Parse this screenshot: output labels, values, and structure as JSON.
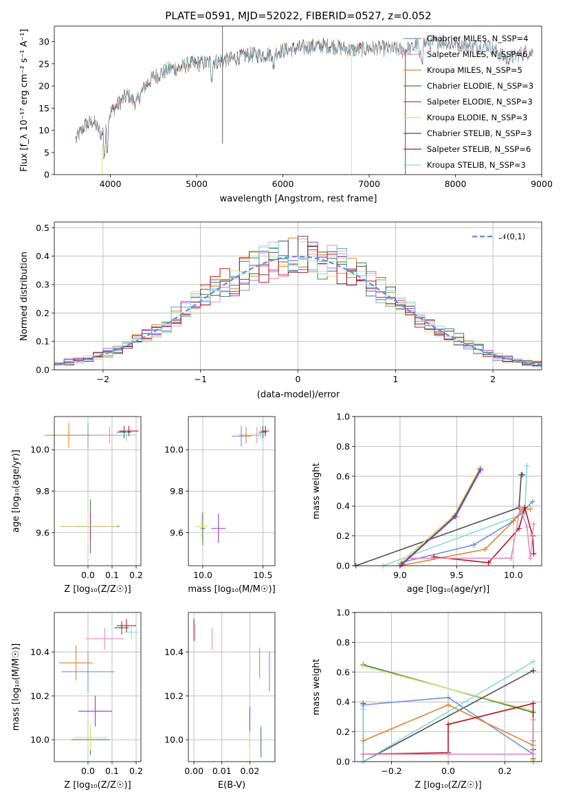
{
  "colors": {
    "chabrier_miles": "#6a8fdc",
    "salpeter_miles": "#e98bbf",
    "kroupa_miles": "#e2832a",
    "chabrier_elodie": "#3f7d54",
    "salpeter_elodie": "#9a32c6",
    "kroupa_elodie": "#d4e56b",
    "chabrier_stelib": "#4d4d4d",
    "salpeter_stelib": "#b0141b",
    "kroupa_stelib": "#82d9e2",
    "normal": "#6a8fdc"
  },
  "chart_data": [
    {
      "id": "spectrum",
      "type": "line",
      "title": "PLATE=0591, MJD=52022, FIBERID=0527, z=0.052",
      "xlabel": "wavelength [Angstrom, rest frame]",
      "ylabel": "Flux [f_λ 10⁻¹⁷ erg cm⁻² s⁻¹ A⁻¹]",
      "xlim": [
        3350,
        9000
      ],
      "ylim": [
        0,
        33.5
      ],
      "xticks": [
        "4000",
        "5000",
        "6000",
        "7000",
        "8000",
        "9000"
      ],
      "yticks": [
        "0",
        "5",
        "10",
        "15",
        "20",
        "25",
        "30"
      ],
      "continuum_anchors": {
        "x": [
          3600,
          3700,
          3800,
          3900,
          4000,
          4100,
          4200,
          4300,
          4400,
          4500,
          4600,
          4700,
          4800,
          4900,
          5000,
          5200,
          5400,
          5600,
          5800,
          6000,
          6200,
          6400,
          6600,
          6800,
          7000,
          7200,
          7400,
          7600,
          7800,
          8000,
          8200,
          8400,
          8600,
          8800
        ],
        "y": [
          8,
          11,
          12,
          9,
          14,
          16,
          18,
          16,
          20,
          22,
          23,
          24,
          24,
          25,
          25,
          25.5,
          26,
          27,
          27,
          28,
          28.5,
          29,
          29,
          28,
          28.5,
          28.5,
          28,
          29.5,
          30,
          29.5,
          29,
          29,
          26,
          27.5
        ]
      },
      "legend": [
        {
          "label": "Chabrier MILES, N_SSP=4",
          "color_key": "chabrier_miles"
        },
        {
          "label": "Salpeter MILES, N_SSP=6",
          "color_key": "salpeter_miles"
        },
        {
          "label": "Kroupa MILES, N_SSP=5",
          "color_key": "kroupa_miles"
        },
        {
          "label": "Chabrier ELODIE, N_SSP=3",
          "color_key": "chabrier_elodie"
        },
        {
          "label": "Salpeter ELODIE, N_SSP=3",
          "color_key": "salpeter_elodie"
        },
        {
          "label": "Kroupa ELODIE, N_SSP=3",
          "color_key": "kroupa_elodie"
        },
        {
          "label": "Chabrier STELIB, N_SSP=3",
          "color_key": "chabrier_stelib"
        },
        {
          "label": "Salpeter STELIB, N_SSP=6",
          "color_key": "salpeter_stelib"
        },
        {
          "label": "Kroupa STELIB, N_SSP=3",
          "color_key": "kroupa_stelib"
        }
      ]
    },
    {
      "id": "residuals",
      "type": "histogram",
      "xlabel": "(data-model)/error",
      "ylabel": "Normed distribution",
      "xlim": [
        -2.5,
        2.5
      ],
      "ylim": [
        0,
        0.52
      ],
      "xticks": [
        "-2",
        "-1",
        "0",
        "1",
        "2"
      ],
      "yticks": [
        "0.0",
        "0.1",
        "0.2",
        "0.3",
        "0.4",
        "0.5"
      ],
      "bin_width": 0.1,
      "legend_label": "𝒩(0,1)"
    },
    {
      "id": "age_vs_Z",
      "type": "errorbar",
      "xlabel": "Z [log₁₀(Z/Z☉)]",
      "ylabel": "age  [log₁₀(age/yr)]",
      "xlim": [
        -0.14,
        0.22
      ],
      "ylim": [
        9.44,
        10.16
      ],
      "xticks": [
        "0.0",
        "0.1",
        "0.2"
      ],
      "yticks": [
        "9.6",
        "9.8",
        "10.0"
      ],
      "points": [
        {
          "x": 0.0,
          "y": 10.07,
          "xerr": 0.18,
          "yerr": 0.06,
          "color_key": "chabrier_miles"
        },
        {
          "x": 0.09,
          "y": 10.07,
          "xerr": 0.04,
          "yerr": 0.04,
          "color_key": "salpeter_miles"
        },
        {
          "x": -0.08,
          "y": 10.07,
          "xerr": 0.09,
          "yerr": 0.06,
          "color_key": "kroupa_miles"
        },
        {
          "x": 0.15,
          "y": 10.085,
          "xerr": 0.03,
          "yerr": 0.03,
          "color_key": "chabrier_stelib"
        },
        {
          "x": 0.17,
          "y": 10.09,
          "xerr": 0.04,
          "yerr": 0.025,
          "color_key": "salpeter_stelib"
        },
        {
          "x": 0.16,
          "y": 10.07,
          "xerr": 0.04,
          "yerr": 0.03,
          "color_key": "kroupa_stelib"
        },
        {
          "x": 0.01,
          "y": 9.63,
          "xerr": 0.06,
          "yerr": 0.13,
          "color_key": "chabrier_elodie"
        },
        {
          "x": 0.01,
          "y": 9.63,
          "xerr": 0.12,
          "yerr": 0.07,
          "color_key": "salpeter_elodie"
        },
        {
          "x": 0.0,
          "y": 9.63,
          "xerr": 0.12,
          "yerr": 0.08,
          "color_key": "kroupa_elodie"
        }
      ]
    },
    {
      "id": "age_vs_mass",
      "type": "errorbar",
      "xlabel": "mass [log₁₀(M/M☉)]",
      "ylabel": "",
      "xlim": [
        9.88,
        10.6
      ],
      "ylim": [
        9.44,
        10.16
      ],
      "xticks": [
        "10.0",
        "10.5"
      ],
      "yticks": [
        "9.6",
        "9.8",
        "10.0"
      ],
      "points": [
        {
          "x": 10.32,
          "y": 10.065,
          "xerr": 0.08,
          "yerr": 0.05,
          "color_key": "chabrier_miles"
        },
        {
          "x": 10.45,
          "y": 10.07,
          "xerr": 0.04,
          "yerr": 0.04,
          "color_key": "salpeter_miles"
        },
        {
          "x": 10.36,
          "y": 10.07,
          "xerr": 0.06,
          "yerr": 0.04,
          "color_key": "kroupa_miles"
        },
        {
          "x": 10.5,
          "y": 10.085,
          "xerr": 0.03,
          "yerr": 0.03,
          "color_key": "chabrier_stelib"
        },
        {
          "x": 10.52,
          "y": 10.09,
          "xerr": 0.03,
          "yerr": 0.025,
          "color_key": "salpeter_stelib"
        },
        {
          "x": 10.48,
          "y": 10.08,
          "xerr": 0.03,
          "yerr": 0.03,
          "color_key": "kroupa_stelib"
        },
        {
          "x": 10.0,
          "y": 9.62,
          "xerr": 0.02,
          "yerr": 0.08,
          "color_key": "chabrier_elodie"
        },
        {
          "x": 10.13,
          "y": 9.62,
          "xerr": 0.06,
          "yerr": 0.07,
          "color_key": "salpeter_elodie"
        },
        {
          "x": 9.99,
          "y": 9.63,
          "xerr": 0.06,
          "yerr": 0.06,
          "color_key": "kroupa_elodie"
        }
      ]
    },
    {
      "id": "mass_weight_vs_age",
      "type": "line",
      "xlabel": "age  [log₁₀(age/yr)]",
      "ylabel": "mass weight",
      "xlim": [
        8.6,
        10.25
      ],
      "ylim": [
        0,
        1.0
      ],
      "xticks": [
        "9.0",
        "9.5",
        "10.0"
      ],
      "yticks": [
        "0.0",
        "0.2",
        "0.4",
        "0.6",
        "0.8",
        "1.0"
      ],
      "series": [
        {
          "color_key": "chabrier_stelib",
          "x": [
            8.61,
            10.05,
            10.07,
            10.08
          ],
          "y": [
            0.0,
            0.39,
            0.61,
            0.61
          ]
        },
        {
          "color_key": "kroupa_stelib",
          "x": [
            8.85,
            10.1,
            10.12
          ],
          "y": [
            0.0,
            0.35,
            0.67
          ]
        },
        {
          "color_key": "chabrier_miles",
          "x": [
            9.0,
            9.65,
            10.0,
            10.17
          ],
          "y": [
            0.02,
            0.14,
            0.3,
            0.43
          ]
        },
        {
          "color_key": "kroupa_miles",
          "x": [
            9.0,
            9.75,
            10.0,
            10.08,
            10.15
          ],
          "y": [
            0.0,
            0.11,
            0.3,
            0.38,
            0.38
          ]
        },
        {
          "color_key": "salpeter_stelib",
          "x": [
            9.3,
            9.78,
            10.05,
            10.1,
            10.17,
            10.18
          ],
          "y": [
            0.06,
            0.02,
            0.25,
            0.39,
            0.2,
            0.08
          ]
        },
        {
          "color_key": "salpeter_miles",
          "x": [
            9.1,
            9.98,
            10.06,
            10.12,
            10.15,
            10.18
          ],
          "y": [
            0.05,
            0.05,
            0.39,
            0.26,
            0.05,
            0.28
          ]
        },
        {
          "color_key": "kroupa_elodie",
          "x": [
            9.0,
            9.48,
            9.7
          ],
          "y": [
            0.02,
            0.34,
            0.65
          ]
        },
        {
          "color_key": "chabrier_elodie",
          "x": [
            9.01,
            9.48,
            9.71
          ],
          "y": [
            0.01,
            0.33,
            0.65
          ]
        },
        {
          "color_key": "salpeter_elodie",
          "x": [
            9.02,
            9.49,
            9.71
          ],
          "y": [
            0.01,
            0.33,
            0.64
          ]
        }
      ]
    },
    {
      "id": "mass_vs_Z",
      "type": "errorbar",
      "xlabel": "Z [log₁₀(Z/Z☉)]",
      "ylabel": "mass [log₁₀(M/M☉)]",
      "xlim": [
        -0.14,
        0.22
      ],
      "ylim": [
        9.9,
        10.58
      ],
      "xticks": [
        "0.0",
        "0.1",
        "0.2"
      ],
      "yticks": [
        "10.0",
        "10.2",
        "10.4"
      ],
      "points": [
        {
          "x": 0.0,
          "y": 10.31,
          "xerr": 0.11,
          "yerr": 0.09,
          "color_key": "chabrier_miles"
        },
        {
          "x": 0.07,
          "y": 10.46,
          "xerr": 0.08,
          "yerr": 0.05,
          "color_key": "salpeter_miles"
        },
        {
          "x": -0.05,
          "y": 10.35,
          "xerr": 0.07,
          "yerr": 0.08,
          "color_key": "kroupa_miles"
        },
        {
          "x": 0.14,
          "y": 10.51,
          "xerr": 0.03,
          "yerr": 0.03,
          "color_key": "chabrier_stelib"
        },
        {
          "x": 0.16,
          "y": 10.52,
          "xerr": 0.04,
          "yerr": 0.03,
          "color_key": "salpeter_stelib"
        },
        {
          "x": 0.18,
          "y": 10.49,
          "xerr": 0.03,
          "yerr": 0.03,
          "color_key": "kroupa_stelib"
        },
        {
          "x": 0.01,
          "y": 10.0,
          "xerr": 0.08,
          "yerr": 0.07,
          "color_key": "chabrier_elodie"
        },
        {
          "x": 0.03,
          "y": 10.13,
          "xerr": 0.07,
          "yerr": 0.07,
          "color_key": "salpeter_elodie"
        },
        {
          "x": 0.01,
          "y": 10.01,
          "xerr": 0.07,
          "yerr": 0.06,
          "color_key": "kroupa_elodie"
        }
      ]
    },
    {
      "id": "mass_vs_ebv",
      "type": "errorbar",
      "xlabel": "E(B-V)",
      "ylabel": "",
      "xlim": [
        -0.002,
        0.029
      ],
      "ylim": [
        9.9,
        10.58
      ],
      "xticks": [
        "0.00",
        "0.01",
        "0.02"
      ],
      "yticks": [
        "10.0",
        "10.2",
        "10.4"
      ],
      "points": [
        {
          "x": 0.0,
          "y": 10.5,
          "xerr": 0.0,
          "yerr": 0.05,
          "color_key": "salpeter_stelib"
        },
        {
          "x": 0.0005,
          "y": 10.49,
          "xerr": 0.0,
          "yerr": 0.04,
          "color_key": "kroupa_stelib"
        },
        {
          "x": 0.0065,
          "y": 10.46,
          "xerr": 0.0,
          "yerr": 0.05,
          "color_key": "salpeter_miles"
        },
        {
          "x": 0.0235,
          "y": 10.35,
          "xerr": 0.0,
          "yerr": 0.07,
          "color_key": "kroupa_miles"
        },
        {
          "x": 0.027,
          "y": 10.31,
          "xerr": 0.0,
          "yerr": 0.09,
          "color_key": "chabrier_miles"
        },
        {
          "x": 0.02,
          "y": 10.06,
          "xerr": 0.0,
          "yerr": 0.09,
          "color_key": "salpeter_elodie"
        },
        {
          "x": 0.02,
          "y": 9.97,
          "xerr": 0.0,
          "yerr": 0.07,
          "color_key": "kroupa_elodie"
        },
        {
          "x": 0.024,
          "y": 9.99,
          "xerr": 0.0,
          "yerr": 0.07,
          "color_key": "chabrier_elodie"
        }
      ]
    },
    {
      "id": "mass_weight_vs_Z",
      "type": "line",
      "xlabel": "Z [log₁₀(Z/Z☉)]",
      "ylabel": "mass weight",
      "xlim": [
        -0.33,
        0.33
      ],
      "ylim": [
        0,
        1.0
      ],
      "xticks": [
        "-0.2",
        "0.0",
        "0.2"
      ],
      "yticks": [
        "0.0",
        "0.2",
        "0.4",
        "0.6",
        "0.8",
        "1.0"
      ],
      "series": [
        {
          "color_key": "chabrier_elodie",
          "x": [
            -0.3,
            0.3,
            0.3
          ],
          "y": [
            0.65,
            0.33,
            0.02
          ]
        },
        {
          "color_key": "kroupa_elodie",
          "x": [
            -0.3,
            0.3,
            0.3
          ],
          "y": [
            0.64,
            0.34,
            0.01
          ]
        },
        {
          "color_key": "chabrier_stelib",
          "x": [
            -0.3,
            -0.3,
            0.3,
            0.3
          ],
          "y": [
            0.39,
            0.0,
            0.61,
            0.61
          ]
        },
        {
          "color_key": "kroupa_stelib",
          "x": [
            -0.3,
            -0.3,
            0.3
          ],
          "y": [
            0.35,
            0.0,
            0.67
          ]
        },
        {
          "color_key": "chabrier_miles",
          "x": [
            -0.3,
            0.0,
            0.3,
            0.3
          ],
          "y": [
            0.38,
            0.43,
            0.05,
            0.14
          ]
        },
        {
          "color_key": "kroupa_miles",
          "x": [
            -0.3,
            0.0,
            0.3,
            0.3
          ],
          "y": [
            0.14,
            0.38,
            0.11,
            0.0
          ]
        },
        {
          "color_key": "salpeter_stelib",
          "x": [
            -0.3,
            0.0,
            0.0,
            0.3,
            0.3
          ],
          "y": [
            0.05,
            0.06,
            0.25,
            0.39,
            0.08
          ]
        },
        {
          "color_key": "salpeter_miles",
          "x": [
            -0.3,
            0.0,
            0.3,
            0.3
          ],
          "y": [
            0.05,
            0.05,
            0.05,
            0.28
          ]
        }
      ]
    }
  ]
}
